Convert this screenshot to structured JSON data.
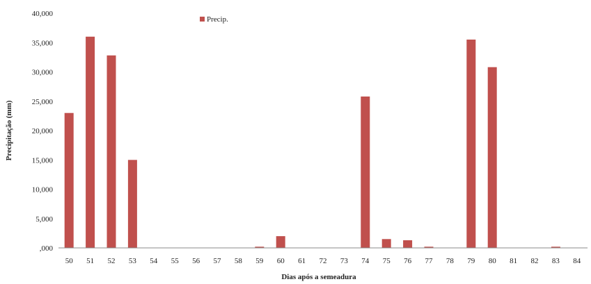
{
  "chart_data": {
    "type": "bar",
    "title": "",
    "xlabel": "Dias após a semeadura",
    "ylabel": "Precipitação (mm)",
    "ylim": [
      0,
      40
    ],
    "yticks": [
      0,
      5,
      10,
      15,
      20,
      25,
      30,
      35,
      40
    ],
    "ytick_labels": [
      ",000",
      "5,000",
      "10,000",
      "15,000",
      "20,000",
      "25,000",
      "30,000",
      "35,000",
      "40,000"
    ],
    "grid": false,
    "legend": {
      "position": "top-left",
      "entries": [
        "Precip."
      ]
    },
    "categories": [
      "50",
      "51",
      "52",
      "53",
      "54",
      "55",
      "56",
      "57",
      "58",
      "59",
      "60",
      "61",
      "72",
      "73",
      "74",
      "75",
      "76",
      "77",
      "78",
      "79",
      "80",
      "81",
      "82",
      "83",
      "84"
    ],
    "series": [
      {
        "name": "Precip.",
        "color": "#c0504d",
        "values": [
          23.0,
          36.0,
          32.8,
          15.0,
          0,
          0,
          0,
          0,
          0,
          0.2,
          2.0,
          0,
          0,
          0,
          25.8,
          1.5,
          1.3,
          0.2,
          0,
          35.5,
          30.8,
          0,
          0,
          0.2,
          0
        ]
      }
    ]
  }
}
